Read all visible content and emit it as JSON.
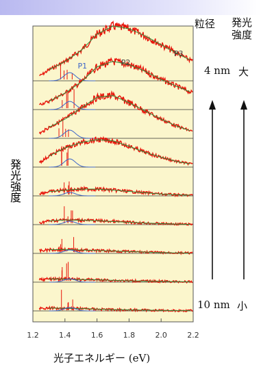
{
  "header": {
    "size_label": "粒径",
    "intensity_label": "発光強度"
  },
  "annotations": {
    "top_size": "4 nm",
    "top_intensity": "大",
    "bottom_size": "10 nm",
    "bottom_intensity": "小"
  },
  "colors": {
    "plot_background": "#fbf6cc",
    "data_trace": "#e8140a",
    "fit_component": "#3c64c8",
    "fit_envelope": "#2f8a3a",
    "header_band": "#b9b9f0"
  },
  "chart_data": {
    "type": "line",
    "title": "",
    "xlabel": "光子エネルギー (eV)",
    "ylabel": "発光強度",
    "xlim": [
      1.2,
      2.2
    ],
    "xticks": [
      "1.2",
      "1.4",
      "1.6",
      "1.8",
      "2.0",
      "2.2"
    ],
    "yticks": [],
    "grid": false,
    "peak_labels": [
      "P1",
      "P2",
      "P3"
    ],
    "series": [
      {
        "x": [
          1.25,
          1.3,
          1.4,
          1.5,
          1.6,
          1.7,
          1.8,
          1.9,
          2.0,
          2.1,
          2.2
        ],
        "values": [
          0.1,
          0.2,
          0.35,
          0.55,
          0.85,
          1.0,
          0.95,
          0.82,
          0.66,
          0.5,
          0.35
        ]
      },
      {
        "x": [
          1.25,
          1.3,
          1.4,
          1.5,
          1.6,
          1.7,
          1.8,
          1.9,
          2.0,
          2.1,
          2.2
        ],
        "values": [
          0.1,
          0.15,
          0.3,
          0.5,
          0.78,
          0.88,
          0.82,
          0.7,
          0.55,
          0.42,
          0.3
        ]
      },
      {
        "x": [
          1.25,
          1.3,
          1.4,
          1.5,
          1.6,
          1.7,
          1.8,
          1.9,
          2.0,
          2.1,
          2.2
        ],
        "values": [
          0.1,
          0.2,
          0.35,
          0.55,
          0.75,
          0.78,
          0.65,
          0.5,
          0.35,
          0.22,
          0.12
        ]
      },
      {
        "x": [
          1.25,
          1.3,
          1.4,
          1.5,
          1.6,
          1.7,
          1.8,
          1.9,
          2.0,
          2.1,
          2.2
        ],
        "values": [
          0.1,
          0.2,
          0.35,
          0.45,
          0.5,
          0.48,
          0.38,
          0.27,
          0.18,
          0.1,
          0.05
        ]
      },
      {
        "x": [
          1.25,
          1.3,
          1.4,
          1.5,
          1.6,
          1.7,
          1.8,
          1.9,
          2.0,
          2.1,
          2.2
        ],
        "values": [
          0.1,
          0.16,
          0.22,
          0.26,
          0.26,
          0.22,
          0.17,
          0.12,
          0.07,
          0.04,
          0.02
        ]
      },
      {
        "x": [
          1.25,
          1.3,
          1.4,
          1.5,
          1.6,
          1.7,
          1.8,
          1.9,
          2.0,
          2.1,
          2.2
        ],
        "values": [
          0.08,
          0.14,
          0.18,
          0.17,
          0.15,
          0.12,
          0.09,
          0.06,
          0.04,
          0.02,
          0.01
        ]
      },
      {
        "x": [
          1.25,
          1.3,
          1.4,
          1.5,
          1.6,
          1.7,
          1.8,
          1.9,
          2.0,
          2.1,
          2.2
        ],
        "values": [
          0.1,
          0.14,
          0.15,
          0.13,
          0.11,
          0.09,
          0.07,
          0.05,
          0.03,
          0.02,
          0.01
        ]
      },
      {
        "x": [
          1.25,
          1.3,
          1.4,
          1.5,
          1.6,
          1.7,
          1.8,
          1.9,
          2.0,
          2.1,
          2.2
        ],
        "values": [
          0.1,
          0.12,
          0.12,
          0.1,
          0.09,
          0.07,
          0.05,
          0.04,
          0.03,
          0.02,
          0.01
        ]
      },
      {
        "x": [
          1.25,
          1.3,
          1.4,
          1.5,
          1.6,
          1.7,
          1.8,
          1.9,
          2.0,
          2.1,
          2.2
        ],
        "values": [
          0.1,
          0.11,
          0.1,
          0.09,
          0.07,
          0.05,
          0.04,
          0.03,
          0.02,
          0.01,
          0.01
        ]
      }
    ]
  }
}
